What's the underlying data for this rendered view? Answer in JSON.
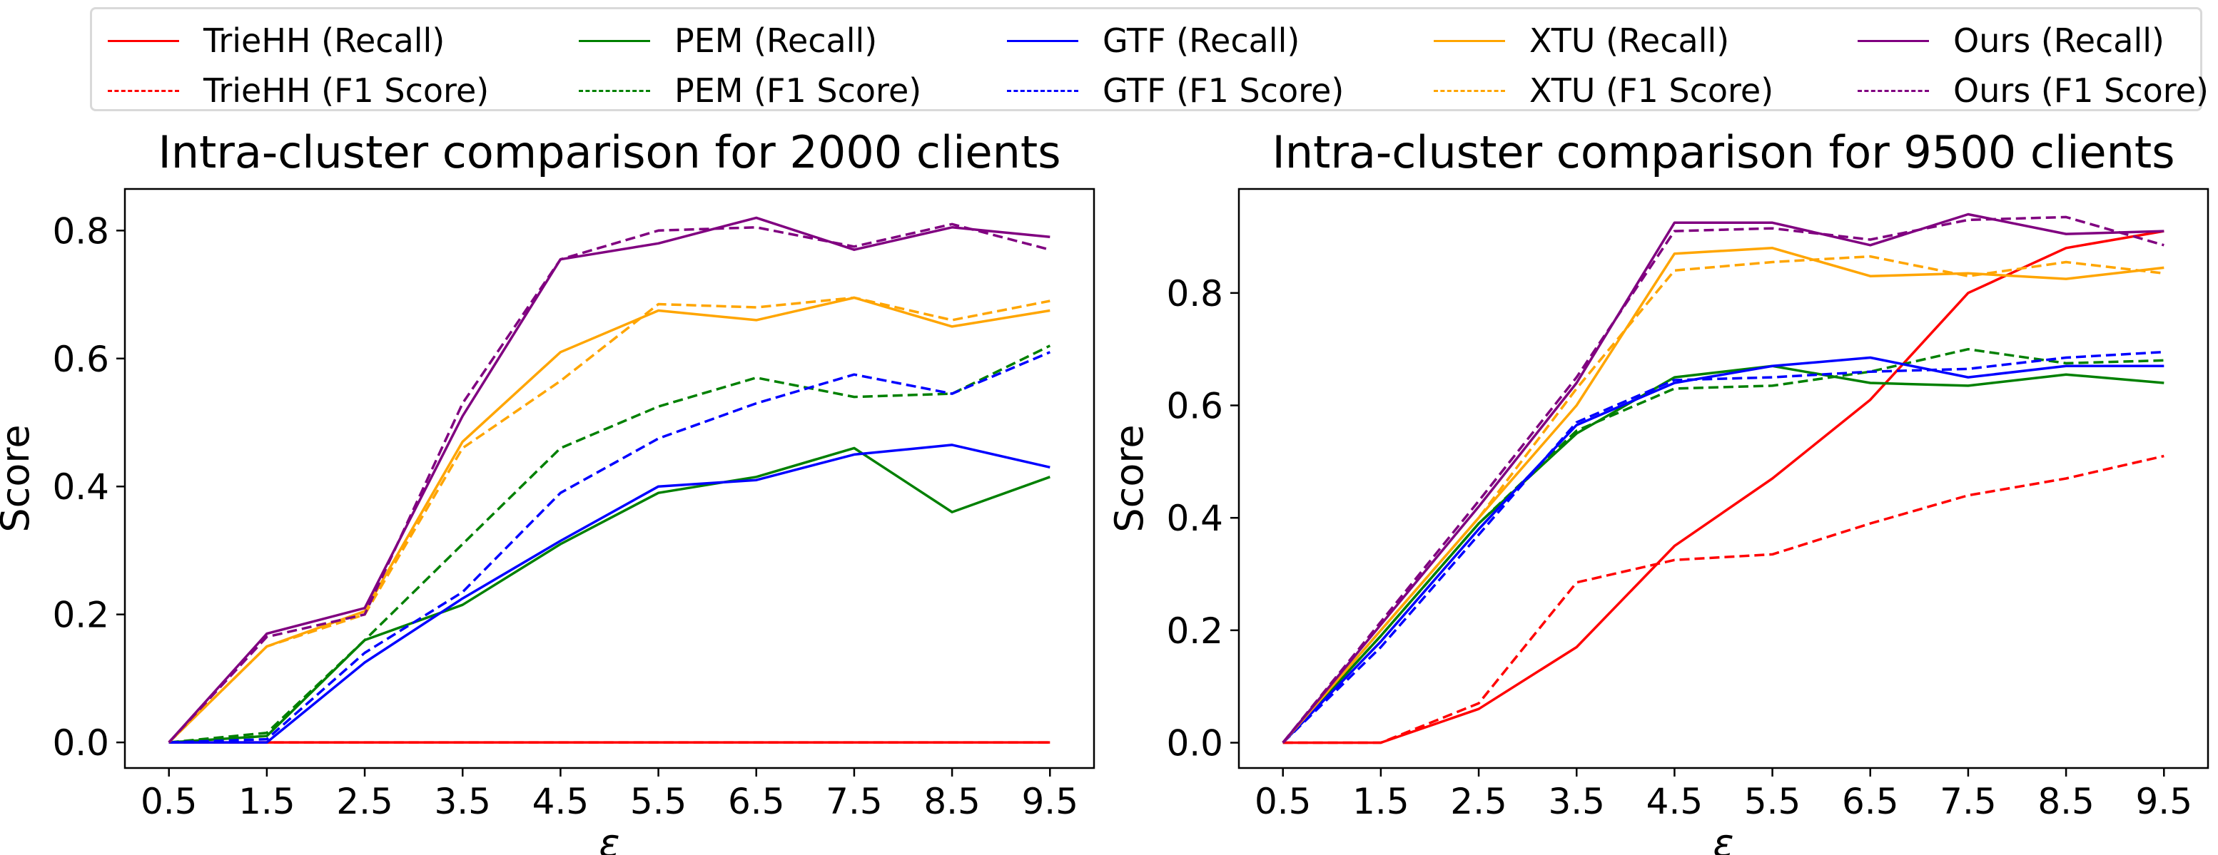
{
  "legend": {
    "items": [
      {
        "label": "TrieHH (Recall)",
        "color": "#ff0000",
        "dash": "solid"
      },
      {
        "label": "PEM (Recall)",
        "color": "#008000",
        "dash": "solid"
      },
      {
        "label": "GTF (Recall)",
        "color": "#0000ff",
        "dash": "solid"
      },
      {
        "label": "XTU (Recall)",
        "color": "#ffa500",
        "dash": "solid"
      },
      {
        "label": "Ours (Recall)",
        "color": "#800080",
        "dash": "solid"
      },
      {
        "label": "TrieHH (F1 Score)",
        "color": "#ff0000",
        "dash": "dashed"
      },
      {
        "label": "PEM (F1 Score)",
        "color": "#008000",
        "dash": "dashed"
      },
      {
        "label": "GTF (F1 Score)",
        "color": "#0000ff",
        "dash": "dashed"
      },
      {
        "label": "XTU (F1 Score)",
        "color": "#ffa500",
        "dash": "dashed"
      },
      {
        "label": "Ours (F1 Score)",
        "color": "#800080",
        "dash": "dashed"
      }
    ]
  },
  "chart_data": [
    {
      "type": "line",
      "title": "Intra-cluster comparison for 2000 clients",
      "xlabel": "ε",
      "ylabel": "Score",
      "x": [
        0.5,
        1.5,
        2.5,
        3.5,
        4.5,
        5.5,
        6.5,
        7.5,
        8.5,
        9.5
      ],
      "x_tick_labels": [
        "0.5",
        "1.5",
        "2.5",
        "3.5",
        "4.5",
        "5.5",
        "6.5",
        "7.5",
        "8.5",
        "9.5"
      ],
      "y_ticks": [
        0.0,
        0.2,
        0.4,
        0.6,
        0.8
      ],
      "y_tick_labels": [
        "0.0",
        "0.2",
        "0.4",
        "0.6",
        "0.8"
      ],
      "ylim": [
        -0.04,
        0.865
      ],
      "series": [
        {
          "name": "TrieHH (Recall)",
          "color": "#ff0000",
          "dash": "solid",
          "values": [
            0,
            0,
            0,
            0,
            0,
            0,
            0,
            0,
            0,
            0
          ]
        },
        {
          "name": "TrieHH (F1 Score)",
          "color": "#ff0000",
          "dash": "dashed",
          "values": [
            0,
            0,
            0,
            0,
            0,
            0,
            0,
            0,
            0,
            0
          ]
        },
        {
          "name": "PEM (Recall)",
          "color": "#008000",
          "dash": "solid",
          "values": [
            0,
            0.01,
            0.16,
            0.215,
            0.31,
            0.39,
            0.415,
            0.46,
            0.36,
            0.415
          ]
        },
        {
          "name": "PEM (F1 Score)",
          "color": "#008000",
          "dash": "dashed",
          "values": [
            0,
            0.015,
            0.16,
            0.31,
            0.46,
            0.525,
            0.57,
            0.54,
            0.545,
            0.62
          ]
        },
        {
          "name": "GTF (Recall)",
          "color": "#0000ff",
          "dash": "solid",
          "values": [
            0,
            0,
            0.125,
            0.225,
            0.315,
            0.4,
            0.41,
            0.45,
            0.465,
            0.43
          ]
        },
        {
          "name": "GTF (F1 Score)",
          "color": "#0000ff",
          "dash": "dashed",
          "values": [
            0,
            0.005,
            0.14,
            0.235,
            0.39,
            0.475,
            0.53,
            0.575,
            0.545,
            0.61
          ]
        },
        {
          "name": "XTU (Recall)",
          "color": "#ffa500",
          "dash": "solid",
          "values": [
            0,
            0.15,
            0.205,
            0.47,
            0.61,
            0.675,
            0.66,
            0.695,
            0.65,
            0.675
          ]
        },
        {
          "name": "XTU (F1 Score)",
          "color": "#ffa500",
          "dash": "dashed",
          "values": [
            0,
            0.15,
            0.2,
            0.46,
            0.565,
            0.685,
            0.68,
            0.695,
            0.66,
            0.69
          ]
        },
        {
          "name": "Ours (Recall)",
          "color": "#800080",
          "dash": "solid",
          "values": [
            0,
            0.17,
            0.21,
            0.51,
            0.755,
            0.78,
            0.82,
            0.77,
            0.805,
            0.79
          ]
        },
        {
          "name": "Ours (F1 Score)",
          "color": "#800080",
          "dash": "dashed",
          "values": [
            0,
            0.165,
            0.2,
            0.53,
            0.755,
            0.8,
            0.805,
            0.775,
            0.81,
            0.77
          ]
        }
      ]
    },
    {
      "type": "line",
      "title": "Intra-cluster comparison for 9500 clients",
      "xlabel": "ε",
      "ylabel": "Score",
      "x": [
        0.5,
        1.5,
        2.5,
        3.5,
        4.5,
        5.5,
        6.5,
        7.5,
        8.5,
        9.5
      ],
      "x_tick_labels": [
        "0.5",
        "1.5",
        "2.5",
        "3.5",
        "4.5",
        "5.5",
        "6.5",
        "7.5",
        "8.5",
        "9.5"
      ],
      "y_ticks": [
        0.0,
        0.2,
        0.4,
        0.6,
        0.8
      ],
      "y_tick_labels": [
        "0.0",
        "0.2",
        "0.4",
        "0.6",
        "0.8"
      ],
      "ylim": [
        -0.045,
        0.985
      ],
      "series": [
        {
          "name": "TrieHH (Recall)",
          "color": "#ff0000",
          "dash": "solid",
          "values": [
            0,
            0,
            0.06,
            0.17,
            0.35,
            0.47,
            0.61,
            0.8,
            0.88,
            0.91
          ]
        },
        {
          "name": "TrieHH (F1 Score)",
          "color": "#ff0000",
          "dash": "dashed",
          "values": [
            0,
            0,
            0.07,
            0.285,
            0.325,
            0.335,
            0.39,
            0.44,
            0.47,
            0.51
          ]
        },
        {
          "name": "PEM (Recall)",
          "color": "#008000",
          "dash": "solid",
          "values": [
            0,
            0.19,
            0.39,
            0.55,
            0.65,
            0.67,
            0.64,
            0.635,
            0.655,
            0.64
          ]
        },
        {
          "name": "PEM (F1 Score)",
          "color": "#008000",
          "dash": "dashed",
          "values": [
            0,
            0.19,
            0.39,
            0.555,
            0.63,
            0.635,
            0.66,
            0.7,
            0.675,
            0.68
          ]
        },
        {
          "name": "GTF (Recall)",
          "color": "#0000ff",
          "dash": "solid",
          "values": [
            0,
            0.18,
            0.38,
            0.565,
            0.64,
            0.67,
            0.685,
            0.65,
            0.67,
            0.67
          ]
        },
        {
          "name": "GTF (F1 Score)",
          "color": "#0000ff",
          "dash": "dashed",
          "values": [
            0,
            0.17,
            0.37,
            0.57,
            0.645,
            0.65,
            0.66,
            0.665,
            0.685,
            0.695
          ]
        },
        {
          "name": "XTU (Recall)",
          "color": "#ffa500",
          "dash": "solid",
          "values": [
            0,
            0.2,
            0.4,
            0.6,
            0.87,
            0.88,
            0.83,
            0.835,
            0.825,
            0.845
          ]
        },
        {
          "name": "XTU (F1 Score)",
          "color": "#ffa500",
          "dash": "dashed",
          "values": [
            0,
            0.2,
            0.4,
            0.63,
            0.84,
            0.855,
            0.865,
            0.83,
            0.855,
            0.835
          ]
        },
        {
          "name": "Ours (Recall)",
          "color": "#800080",
          "dash": "solid",
          "values": [
            0,
            0.21,
            0.42,
            0.64,
            0.925,
            0.925,
            0.885,
            0.94,
            0.905,
            0.91
          ]
        },
        {
          "name": "Ours (F1 Score)",
          "color": "#800080",
          "dash": "dashed",
          "values": [
            0,
            0.215,
            0.43,
            0.65,
            0.91,
            0.915,
            0.895,
            0.93,
            0.935,
            0.885
          ]
        }
      ]
    }
  ]
}
